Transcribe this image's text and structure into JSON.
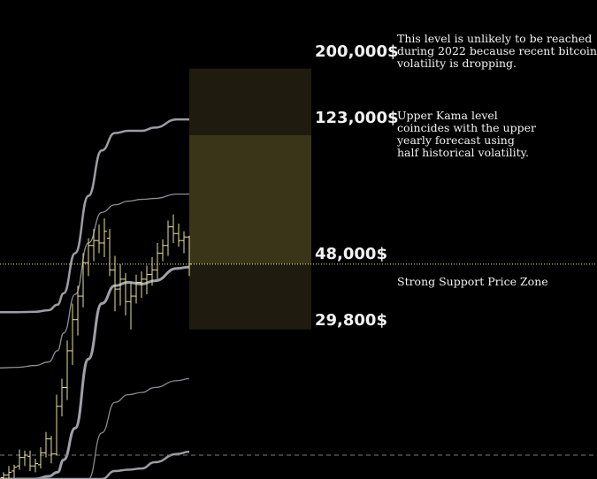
{
  "chart_data": {
    "type": "ohlc",
    "title": "",
    "xlabel": "",
    "ylabel": "",
    "y_scale": "log",
    "ylim": [
      10000,
      330000
    ],
    "price_levels": [
      {
        "id": "level-200000",
        "label": "200,000$",
        "value": 200000
      },
      {
        "id": "level-123000",
        "label": "123,000$",
        "value": 123000
      },
      {
        "id": "level-48000",
        "label": "48,000$",
        "value": 48000
      },
      {
        "id": "level-29800",
        "label": "29,800$",
        "value": 29800
      }
    ],
    "annotations": [
      {
        "id": "note-unlikely",
        "text": "This level is unlikely to be reached\nduring 2022 because recent bitcoin\nvolatility is dropping."
      },
      {
        "id": "note-upper-kama",
        "text": "Upper Kama level\ncoincides with the upper\nyearly forecast using\nhalf historical volatility."
      },
      {
        "id": "note-support",
        "text": "Strong Support Price Zone"
      }
    ],
    "zones": [
      {
        "name": "upper-zone",
        "from": 123000,
        "to": 200000,
        "color": "#1f1c0f"
      },
      {
        "name": "forecast-zone",
        "from": 48000,
        "to": 123000,
        "color": "#3a3418"
      },
      {
        "name": "support-zone",
        "from": 29800,
        "to": 48000,
        "color": "#1f1c0f"
      }
    ],
    "reference_lines": [
      {
        "name": "current-price-line",
        "value": 48000,
        "style": "dotted",
        "color": "#e8e29a"
      },
      {
        "name": "lower-reference-line",
        "value": 11900,
        "style": "dashed",
        "color": "#7a7a7a"
      }
    ],
    "bands": [
      {
        "name": "kama-upper-outer",
        "color": "#9c9ca4",
        "width": 2.5,
        "values": [
          33800,
          33800,
          33900,
          34300,
          35700,
          38800,
          52000,
          79000,
          110000,
          125000,
          127000,
          127000,
          130000,
          138000,
          138000
        ]
      },
      {
        "name": "kama-upper-inner",
        "color": "#8e8e96",
        "width": 1.3,
        "values": [
          22500,
          22600,
          22900,
          23500,
          25500,
          29000,
          38500,
          56000,
          70000,
          74000,
          76000,
          77000,
          77500,
          80000,
          80000
        ]
      },
      {
        "name": "kama-middle",
        "color": "#a0a0a8",
        "width": 3,
        "values": [
          10000,
          10000,
          10000,
          10200,
          10500,
          11500,
          14500,
          24000,
          36000,
          41000,
          42000,
          41500,
          42500,
          46500,
          47000
        ]
      },
      {
        "name": "kama-lower-inner",
        "color": "#8a8a90",
        "width": 1.3,
        "values": [
          10000,
          10000,
          10000,
          10000,
          10000,
          10000,
          10000,
          10000,
          14000,
          17500,
          18500,
          18800,
          19500,
          20500,
          20800
        ]
      },
      {
        "name": "kama-lower-outer",
        "color": "#9c9ca4",
        "width": 2.5,
        "values": [
          10000,
          10000,
          10000,
          10000,
          10000,
          10000,
          10000,
          10000,
          10000,
          10600,
          10700,
          10800,
          11300,
          12000,
          12200
        ]
      }
    ],
    "band_x": [
      0,
      20,
      40,
      55,
      65,
      72,
      85,
      100,
      115,
      130,
      145,
      160,
      175,
      200,
      214
    ],
    "candles": [
      {
        "x": 4,
        "high": 10500,
        "low": 10000,
        "open": 10100,
        "close": 10300
      },
      {
        "x": 10,
        "high": 11000,
        "low": 10000,
        "open": 10300,
        "close": 10500
      },
      {
        "x": 16,
        "high": 11100,
        "low": 10100,
        "open": 10600,
        "close": 10900
      },
      {
        "x": 22,
        "high": 12400,
        "low": 10700,
        "open": 11000,
        "close": 11700
      },
      {
        "x": 28,
        "high": 12300,
        "low": 11000,
        "open": 11700,
        "close": 11900
      },
      {
        "x": 34,
        "high": 12300,
        "low": 10600,
        "open": 11800,
        "close": 11000
      },
      {
        "x": 40,
        "high": 11600,
        "low": 10500,
        "open": 11000,
        "close": 11200
      },
      {
        "x": 46,
        "high": 12600,
        "low": 10800,
        "open": 11100,
        "close": 12100
      },
      {
        "x": 52,
        "high": 14100,
        "low": 11700,
        "open": 12100,
        "close": 13400
      },
      {
        "x": 58,
        "high": 13700,
        "low": 11200,
        "open": 13400,
        "close": 12000
      },
      {
        "x": 64,
        "high": 18500,
        "low": 11900,
        "open": 12000,
        "close": 17000
      },
      {
        "x": 70,
        "high": 20800,
        "low": 15800,
        "open": 17000,
        "close": 19500
      },
      {
        "x": 76,
        "high": 27500,
        "low": 17800,
        "open": 19500,
        "close": 25500
      },
      {
        "x": 82,
        "high": 36000,
        "low": 23000,
        "open": 25500,
        "close": 32000
      },
      {
        "x": 88,
        "high": 41000,
        "low": 28500,
        "open": 32000,
        "close": 38000
      },
      {
        "x": 94,
        "high": 52000,
        "low": 35000,
        "open": 38000,
        "close": 48500
      },
      {
        "x": 100,
        "high": 58000,
        "low": 44000,
        "open": 48500,
        "close": 55000
      },
      {
        "x": 106,
        "high": 62000,
        "low": 49000,
        "open": 55000,
        "close": 57000
      },
      {
        "x": 112,
        "high": 64000,
        "low": 52000,
        "open": 57000,
        "close": 56000
      },
      {
        "x": 118,
        "high": 67000,
        "low": 50500,
        "open": 56000,
        "close": 61000
      },
      {
        "x": 124,
        "high": 62000,
        "low": 44000,
        "open": 58000,
        "close": 46000
      },
      {
        "x": 130,
        "high": 51000,
        "low": 34000,
        "open": 46000,
        "close": 40000
      },
      {
        "x": 136,
        "high": 48000,
        "low": 35500,
        "open": 40000,
        "close": 43000
      },
      {
        "x": 142,
        "high": 45000,
        "low": 33000,
        "open": 43000,
        "close": 36500
      },
      {
        "x": 148,
        "high": 42000,
        "low": 29800,
        "open": 36500,
        "close": 38000
      },
      {
        "x": 154,
        "high": 44500,
        "low": 36000,
        "open": 38000,
        "close": 42000
      },
      {
        "x": 160,
        "high": 45500,
        "low": 37500,
        "open": 42000,
        "close": 43000
      },
      {
        "x": 166,
        "high": 47500,
        "low": 38500,
        "open": 43000,
        "close": 44500
      },
      {
        "x": 172,
        "high": 50500,
        "low": 41000,
        "open": 44500,
        "close": 46000
      },
      {
        "x": 178,
        "high": 56000,
        "low": 43000,
        "open": 46000,
        "close": 52000
      },
      {
        "x": 184,
        "high": 57500,
        "low": 49000,
        "open": 52000,
        "close": 55000
      },
      {
        "x": 190,
        "high": 66000,
        "low": 51000,
        "open": 55000,
        "close": 63000
      },
      {
        "x": 196,
        "high": 69000,
        "low": 56000,
        "open": 63000,
        "close": 60000
      },
      {
        "x": 202,
        "high": 64500,
        "low": 54500,
        "open": 60000,
        "close": 57000
      },
      {
        "x": 208,
        "high": 61000,
        "low": 52000,
        "open": 57000,
        "close": 58500
      },
      {
        "x": 214,
        "high": 59000,
        "low": 44000,
        "open": 58500,
        "close": 48000
      }
    ],
    "candle_color": "#e8e29a",
    "grid": false,
    "legend": "none"
  }
}
